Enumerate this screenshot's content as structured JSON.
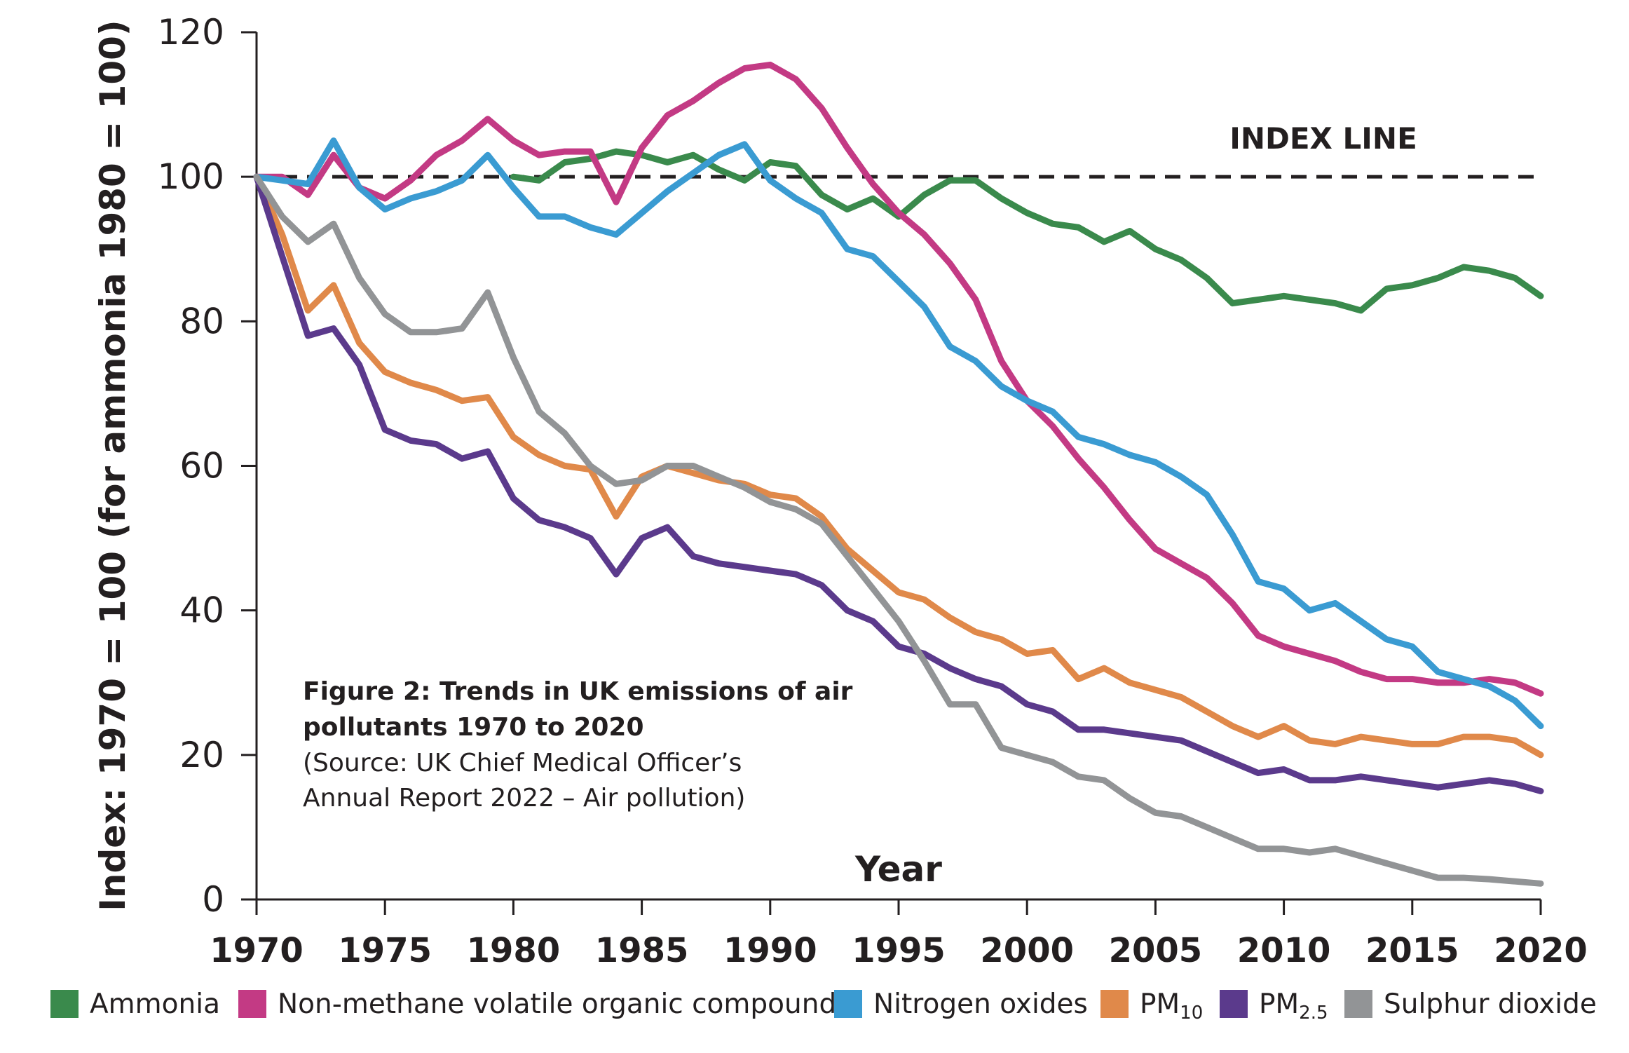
{
  "chart_data": {
    "type": "line",
    "ylabel": "Index: 1970 = 100 (for ammonia 1980 = 100)",
    "xlabel": "Year",
    "ylim": [
      0,
      120
    ],
    "xlim": [
      1970,
      2020
    ],
    "yticks": [
      0,
      20,
      40,
      60,
      80,
      100,
      120
    ],
    "xticks": [
      1970,
      1975,
      1980,
      1985,
      1990,
      1995,
      2000,
      2005,
      2010,
      2015,
      2020
    ],
    "index_line": {
      "value": 100,
      "label": "INDEX LINE"
    },
    "caption": {
      "title_line1": "Figure 2: Trends in UK emissions of air",
      "title_line2": "pollutants 1970 to 2020",
      "source_line1": "(Source: UK Chief Medical Officer’s",
      "source_line2": "Annual Report 2022 – Air pollution)"
    },
    "legend_position": "bottom",
    "series": [
      {
        "name": "Ammonia",
        "color": "#3a8a4c",
        "start": 1980,
        "values": [
          100,
          99.5,
          102,
          102.5,
          103.5,
          103,
          102,
          103,
          101,
          99.5,
          102,
          101.5,
          97.5,
          95.5,
          97,
          94.5,
          97.5,
          99.5,
          99.5,
          97,
          95,
          93.5,
          93,
          91,
          92.5,
          90,
          88.5,
          86,
          82.5,
          83,
          83.5,
          83,
          82.5,
          81.5,
          84.5,
          85,
          86,
          87.5,
          87,
          86,
          83.5
        ]
      },
      {
        "name": "Non-methane volatile organic compounds",
        "color": "#c33a84",
        "start": 1970,
        "values": [
          100,
          100,
          97.5,
          103,
          98.5,
          97,
          99.5,
          103,
          105,
          108,
          105,
          103,
          103.5,
          103.5,
          96.5,
          104,
          108.5,
          110.5,
          113,
          115,
          115.5,
          113.5,
          109.5,
          104,
          99,
          95,
          92,
          88,
          83,
          74.5,
          69,
          65.5,
          61,
          57,
          52.5,
          48.5,
          46.5,
          44.5,
          41,
          36.5,
          35,
          34,
          33,
          31.5,
          30.5,
          30.5,
          30,
          30,
          30.5,
          30,
          28.5
        ]
      },
      {
        "name": "Nitrogen oxides",
        "color": "#3a9bd2",
        "start": 1970,
        "values": [
          100,
          99.5,
          99,
          105,
          98.5,
          95.5,
          97,
          98,
          99.5,
          103,
          98.5,
          94.5,
          94.5,
          93,
          92,
          95,
          98,
          100.5,
          103,
          104.5,
          99.5,
          97,
          95,
          90,
          89,
          85.5,
          82,
          76.5,
          74.5,
          71,
          69,
          67.5,
          64,
          63,
          61.5,
          60.5,
          58.5,
          56,
          50.5,
          44,
          43,
          40,
          41,
          38.5,
          36,
          35,
          31.5,
          30.5,
          29.5,
          27.5,
          24
        ]
      },
      {
        "name": "PM10",
        "color": "#e0894a",
        "start": 1970,
        "values": [
          100,
          92,
          81.5,
          85,
          77,
          73,
          71.5,
          70.5,
          69,
          69.5,
          64,
          61.5,
          60,
          59.5,
          53,
          58.5,
          60,
          59,
          58,
          57.5,
          56,
          55.5,
          53,
          48.5,
          45.5,
          42.5,
          41.5,
          39,
          37,
          36,
          34,
          34.5,
          30.5,
          32,
          30,
          29,
          28,
          26,
          24,
          22.5,
          24,
          22,
          21.5,
          22.5,
          22,
          21.5,
          21.5,
          22.5,
          22.5,
          22,
          20
        ]
      },
      {
        "name": "PM2.5",
        "color": "#5b3a8c",
        "start": 1970,
        "values": [
          100,
          89,
          78,
          79,
          74,
          65,
          63.5,
          63,
          61,
          62,
          55.5,
          52.5,
          51.5,
          50,
          45,
          50,
          51.5,
          47.5,
          46.5,
          46,
          45.5,
          45,
          43.5,
          40,
          38.5,
          35,
          34,
          32,
          30.5,
          29.5,
          27,
          26,
          23.5,
          23.5,
          23,
          22.5,
          22,
          20.5,
          19,
          17.5,
          18,
          16.5,
          16.5,
          17,
          16.5,
          16,
          15.5,
          16,
          16.5,
          16,
          15
        ]
      },
      {
        "name": "Sulphur dioxide",
        "color": "#929496",
        "start": 1970,
        "values": [
          100,
          94.5,
          91,
          93.5,
          86,
          81,
          78.5,
          78.5,
          79,
          84,
          75,
          67.5,
          64.5,
          60,
          57.5,
          58,
          60,
          60,
          58.5,
          57,
          55,
          54,
          52,
          47.5,
          43,
          38.5,
          33,
          27,
          27,
          21,
          20,
          19,
          17,
          16.5,
          14,
          12,
          11.5,
          10,
          8.5,
          7,
          7,
          6.5,
          7,
          6,
          5,
          4,
          3,
          3,
          2.8,
          2.5,
          2.2
        ]
      }
    ]
  }
}
